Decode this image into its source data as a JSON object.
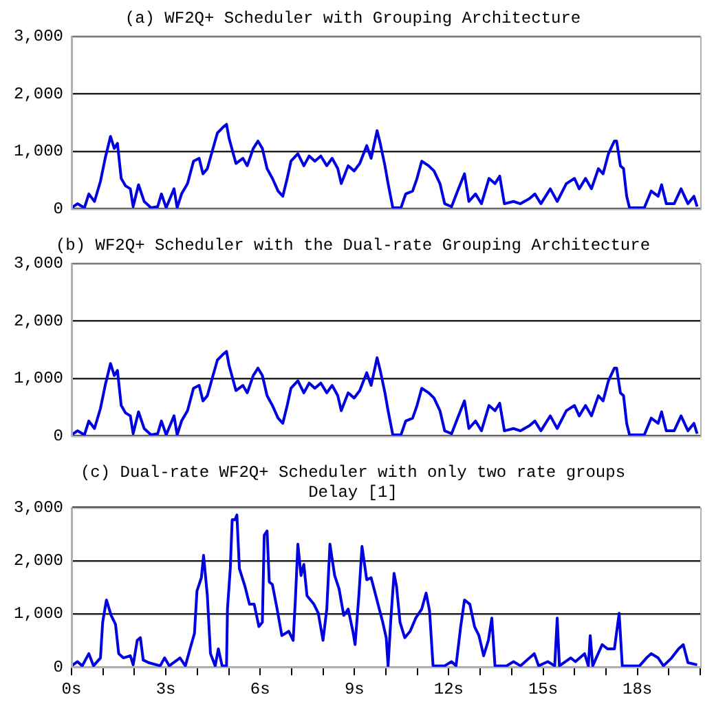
{
  "chart_data": [
    {
      "type": "line",
      "title": "(a) WF2Q+ Scheduler with Grouping Architecture",
      "tick_labels": "y",
      "grid": "y",
      "xlim": [
        0,
        20
      ],
      "ylim": [
        0,
        3000
      ],
      "yticks": [
        {
          "value": 0,
          "label": "0"
        },
        {
          "value": 1000,
          "label": "1,000"
        },
        {
          "value": 2000,
          "label": "2,000"
        },
        {
          "value": 3000,
          "label": "3,000"
        }
      ],
      "x": [
        0,
        0.19,
        0.41,
        0.55,
        0.73,
        0.92,
        1.07,
        1.24,
        1.36,
        1.46,
        1.58,
        1.72,
        1.87,
        1.96,
        2.13,
        2.31,
        2.53,
        2.74,
        2.86,
        3.01,
        3.26,
        3.36,
        3.5,
        3.69,
        3.88,
        4.06,
        4.18,
        4.32,
        4.5,
        4.64,
        4.82,
        4.93,
        5.01,
        5.23,
        5.45,
        5.59,
        5.78,
        5.93,
        6.07,
        6.22,
        6.39,
        6.57,
        6.72,
        6.86,
        6.98,
        7.2,
        7.39,
        7.56,
        7.74,
        7.93,
        8.12,
        8.29,
        8.47,
        8.58,
        8.8,
        8.99,
        9.17,
        9.39,
        9.53,
        9.72,
        9.82,
        9.97,
        10.07,
        10.22,
        10.48,
        10.63,
        10.85,
        10.99,
        11.14,
        11.36,
        11.53,
        11.72,
        11.87,
        12.09,
        12.31,
        12.5,
        12.64,
        12.85,
        13.04,
        13.28,
        13.47,
        13.62,
        13.77,
        14.06,
        14.28,
        14.57,
        14.74,
        14.93,
        15.23,
        15.45,
        15.74,
        16.0,
        16.15,
        16.35,
        16.54,
        16.76,
        16.91,
        17.08,
        17.27,
        17.34,
        17.46,
        17.56,
        17.66,
        17.75,
        18.22,
        18.44,
        18.66,
        18.77,
        18.92,
        19.17,
        19.39,
        19.61,
        19.8,
        19.9
      ],
      "series": [
        {
          "color": "#0000e0",
          "values": [
            20,
            90,
            20,
            260,
            130,
            480,
            880,
            1260,
            1050,
            1140,
            530,
            400,
            350,
            40,
            420,
            130,
            20,
            40,
            260,
            20,
            350,
            20,
            260,
            440,
            830,
            880,
            610,
            700,
            1050,
            1320,
            1420,
            1470,
            1230,
            790,
            880,
            750,
            1050,
            1180,
            1050,
            700,
            530,
            310,
            220,
            530,
            830,
            960,
            750,
            920,
            830,
            920,
            750,
            880,
            700,
            440,
            750,
            660,
            790,
            1100,
            880,
            1360,
            1140,
            750,
            440,
            20,
            20,
            260,
            310,
            530,
            830,
            750,
            660,
            440,
            90,
            40,
            350,
            610,
            130,
            260,
            90,
            530,
            440,
            570,
            90,
            130,
            90,
            180,
            260,
            90,
            350,
            130,
            440,
            530,
            350,
            530,
            350,
            700,
            610,
            960,
            1180,
            1180,
            750,
            700,
            220,
            20,
            20,
            310,
            220,
            420,
            90,
            90,
            350,
            90,
            220,
            40
          ]
        }
      ]
    },
    {
      "type": "line",
      "title": "(b) WF2Q+ Scheduler with the Dual-rate Grouping Architecture",
      "tick_labels": "y",
      "grid": "y",
      "xlim": [
        0,
        20
      ],
      "ylim": [
        0,
        3000
      ],
      "yticks": [
        {
          "value": 0,
          "label": "0"
        },
        {
          "value": 1000,
          "label": "1,000"
        },
        {
          "value": 2000,
          "label": "2,000"
        },
        {
          "value": 3000,
          "label": "3,000"
        }
      ],
      "x": [
        0,
        0.19,
        0.41,
        0.55,
        0.73,
        0.92,
        1.07,
        1.24,
        1.36,
        1.46,
        1.58,
        1.72,
        1.87,
        1.96,
        2.13,
        2.31,
        2.53,
        2.74,
        2.86,
        3.01,
        3.26,
        3.36,
        3.5,
        3.69,
        3.88,
        4.06,
        4.18,
        4.32,
        4.5,
        4.64,
        4.82,
        4.93,
        5.01,
        5.23,
        5.45,
        5.59,
        5.78,
        5.93,
        6.07,
        6.22,
        6.39,
        6.57,
        6.72,
        6.86,
        6.98,
        7.2,
        7.39,
        7.56,
        7.74,
        7.93,
        8.12,
        8.29,
        8.47,
        8.58,
        8.8,
        8.99,
        9.17,
        9.39,
        9.53,
        9.72,
        9.82,
        9.97,
        10.07,
        10.22,
        10.48,
        10.63,
        10.85,
        10.99,
        11.14,
        11.36,
        11.53,
        11.72,
        11.87,
        12.09,
        12.31,
        12.5,
        12.64,
        12.85,
        13.04,
        13.28,
        13.47,
        13.62,
        13.77,
        14.06,
        14.28,
        14.57,
        14.74,
        14.93,
        15.23,
        15.45,
        15.74,
        16.0,
        16.15,
        16.35,
        16.54,
        16.76,
        16.91,
        17.08,
        17.27,
        17.34,
        17.46,
        17.56,
        17.66,
        17.75,
        18.22,
        18.44,
        18.66,
        18.77,
        18.92,
        19.17,
        19.39,
        19.61,
        19.8,
        19.9
      ],
      "series": [
        {
          "color": "#0000e0",
          "values": [
            20,
            90,
            20,
            260,
            130,
            480,
            880,
            1260,
            1050,
            1140,
            530,
            400,
            350,
            40,
            420,
            130,
            20,
            40,
            260,
            20,
            350,
            20,
            260,
            440,
            830,
            880,
            610,
            700,
            1050,
            1320,
            1420,
            1470,
            1230,
            790,
            880,
            750,
            1050,
            1180,
            1050,
            700,
            530,
            310,
            220,
            530,
            830,
            960,
            750,
            920,
            830,
            920,
            750,
            880,
            700,
            440,
            750,
            660,
            790,
            1100,
            880,
            1360,
            1140,
            750,
            440,
            20,
            20,
            260,
            310,
            530,
            830,
            750,
            660,
            440,
            90,
            40,
            350,
            610,
            130,
            260,
            90,
            530,
            440,
            570,
            90,
            130,
            90,
            180,
            260,
            90,
            350,
            130,
            440,
            530,
            350,
            530,
            350,
            700,
            610,
            960,
            1180,
            1180,
            750,
            700,
            220,
            20,
            20,
            310,
            220,
            420,
            90,
            90,
            350,
            90,
            220,
            40
          ]
        }
      ]
    },
    {
      "type": "line",
      "title": "(c) Dual-rate WF2Q+ Scheduler with only two rate groups",
      "subtitle": "Delay [1]",
      "grid": "y",
      "xlim": [
        0,
        20
      ],
      "ylim": [
        0,
        3000
      ],
      "yticks": [
        {
          "value": 0,
          "label": "0"
        },
        {
          "value": 1000,
          "label": "1,000"
        },
        {
          "value": 2000,
          "label": "2,000"
        },
        {
          "value": 3000,
          "label": "3,000"
        }
      ],
      "xticks": [
        {
          "value": 0,
          "label": "0s"
        },
        {
          "value": 1,
          "label": null
        },
        {
          "value": 2,
          "label": null
        },
        {
          "value": 3,
          "label": "3s"
        },
        {
          "value": 4,
          "label": null
        },
        {
          "value": 5,
          "label": null
        },
        {
          "value": 6,
          "label": "6s"
        },
        {
          "value": 7,
          "label": null
        },
        {
          "value": 8,
          "label": null
        },
        {
          "value": 9,
          "label": "9s"
        },
        {
          "value": 10,
          "label": null
        },
        {
          "value": 11,
          "label": null
        },
        {
          "value": 12,
          "label": "12s"
        },
        {
          "value": 13,
          "label": null
        },
        {
          "value": 14,
          "label": null
        },
        {
          "value": 15,
          "label": "15s"
        },
        {
          "value": 16,
          "label": null
        },
        {
          "value": 17,
          "label": null
        },
        {
          "value": 18,
          "label": "18s"
        },
        {
          "value": 19,
          "label": null
        },
        {
          "value": 20,
          "label": null
        }
      ],
      "x": [
        0,
        0.19,
        0.34,
        0.55,
        0.7,
        0.92,
        0.99,
        1.11,
        1.26,
        1.4,
        1.5,
        1.65,
        1.87,
        1.96,
        2.09,
        2.19,
        2.28,
        2.45,
        2.82,
        2.96,
        3.11,
        3.45,
        3.62,
        3.77,
        3.91,
        3.99,
        4.13,
        4.2,
        4.32,
        4.42,
        4.57,
        4.67,
        4.79,
        4.93,
        4.96,
        5.05,
        5.11,
        5.2,
        5.26,
        5.34,
        5.52,
        5.66,
        5.81,
        5.96,
        6.07,
        6.13,
        6.22,
        6.29,
        6.39,
        6.54,
        6.69,
        6.91,
        7.05,
        7.12,
        7.2,
        7.3,
        7.39,
        7.49,
        7.71,
        7.85,
        8.0,
        8.12,
        8.22,
        8.37,
        8.51,
        8.66,
        8.8,
        8.95,
        9.02,
        9.14,
        9.24,
        9.39,
        9.53,
        9.68,
        9.9,
        10.01,
        10.07,
        10.16,
        10.26,
        10.34,
        10.45,
        10.6,
        10.77,
        10.95,
        11.14,
        11.28,
        11.39,
        11.5,
        11.87,
        12.09,
        12.23,
        12.38,
        12.5,
        12.67,
        12.82,
        12.96,
        13.11,
        13.26,
        13.37,
        13.47,
        13.84,
        14.06,
        14.28,
        14.57,
        14.72,
        14.86,
        15.15,
        15.37,
        15.45,
        15.52,
        15.88,
        16.03,
        16.32,
        16.44,
        16.5,
        16.58,
        16.88,
        17.05,
        17.27,
        17.42,
        17.52,
        18.07,
        18.29,
        18.44,
        18.66,
        18.83,
        19.09,
        19.31,
        19.46,
        19.61,
        19.9
      ],
      "series": [
        {
          "color": "#0000e0",
          "values": [
            20,
            100,
            20,
            250,
            20,
            170,
            840,
            1260,
            970,
            800,
            250,
            170,
            210,
            40,
            500,
            550,
            130,
            80,
            20,
            170,
            20,
            170,
            20,
            340,
            630,
            1430,
            1680,
            2100,
            1340,
            250,
            20,
            340,
            20,
            20,
            1090,
            1850,
            2770,
            2770,
            2860,
            1850,
            1510,
            1180,
            1180,
            760,
            840,
            2480,
            2560,
            1600,
            1550,
            1090,
            590,
            670,
            500,
            1260,
            2310,
            1720,
            1930,
            1340,
            1180,
            1010,
            500,
            1090,
            2310,
            1720,
            1470,
            970,
            1090,
            670,
            420,
            1340,
            2270,
            1640,
            1680,
            1340,
            840,
            550,
            20,
            920,
            1760,
            1510,
            840,
            550,
            670,
            920,
            1090,
            1390,
            1050,
            20,
            20,
            100,
            20,
            760,
            1260,
            1180,
            760,
            590,
            210,
            500,
            920,
            20,
            20,
            100,
            20,
            170,
            250,
            20,
            100,
            20,
            920,
            20,
            170,
            100,
            250,
            20,
            590,
            20,
            420,
            340,
            340,
            1010,
            20,
            20,
            170,
            250,
            170,
            20,
            170,
            340,
            420,
            80,
            40
          ]
        }
      ]
    }
  ]
}
